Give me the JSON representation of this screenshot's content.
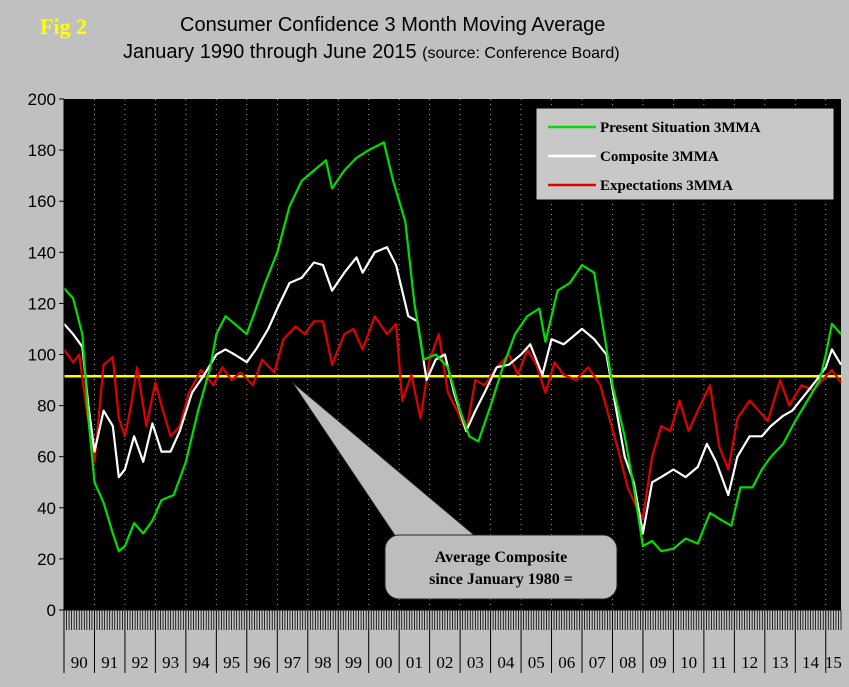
{
  "fig_label": "Fig 2",
  "title": {
    "line1": "Consumer Confidence 3 Month Moving Average",
    "line2": "January 1990 through June 2015",
    "source": "(source: Conference Board)"
  },
  "colors": {
    "background": "#c0c0c0",
    "plot_area": "#000000",
    "present": "#00dd00",
    "composite": "#ffffff",
    "expectations": "#e00000",
    "average_line": "#ffff00",
    "fig_label": "#ffff00"
  },
  "callout": {
    "line1": "Average Composite",
    "line2": "since January 1980 ="
  },
  "chart_data": {
    "type": "line",
    "ylim": [
      0,
      200
    ],
    "y_ticks": [
      "0",
      "20",
      "40",
      "60",
      "80",
      "100",
      "120",
      "140",
      "160",
      "180",
      "200"
    ],
    "x_range": [
      1990.0,
      2015.5
    ],
    "year_labels": [
      "90",
      "91",
      "92",
      "93",
      "94",
      "95",
      "96",
      "97",
      "98",
      "99",
      "00",
      "01",
      "02",
      "03",
      "04",
      "05",
      "06",
      "07",
      "08",
      "09",
      "10",
      "11",
      "12",
      "13",
      "14",
      "15"
    ],
    "grid": "vertical dotted lines at years",
    "legend_position": "top-right",
    "average_composite": 91.5,
    "series": [
      {
        "name": "Present Situation 3MMA",
        "color": "#00dd00",
        "points": [
          [
            1990.0,
            126
          ],
          [
            1990.3,
            122
          ],
          [
            1990.6,
            108
          ],
          [
            1990.8,
            75
          ],
          [
            1991.0,
            50
          ],
          [
            1991.3,
            42
          ],
          [
            1991.6,
            30
          ],
          [
            1991.8,
            23
          ],
          [
            1992.0,
            25
          ],
          [
            1992.3,
            34
          ],
          [
            1992.6,
            30
          ],
          [
            1992.9,
            35
          ],
          [
            1993.2,
            43
          ],
          [
            1993.6,
            45
          ],
          [
            1994.0,
            58
          ],
          [
            1994.4,
            78
          ],
          [
            1994.8,
            95
          ],
          [
            1995.0,
            108
          ],
          [
            1995.3,
            115
          ],
          [
            1995.6,
            112
          ],
          [
            1996.0,
            108
          ],
          [
            1996.3,
            118
          ],
          [
            1996.6,
            128
          ],
          [
            1997.0,
            140
          ],
          [
            1997.4,
            158
          ],
          [
            1997.8,
            168
          ],
          [
            1998.2,
            172
          ],
          [
            1998.6,
            176
          ],
          [
            1998.8,
            165
          ],
          [
            1999.2,
            172
          ],
          [
            1999.6,
            177
          ],
          [
            2000.0,
            180
          ],
          [
            2000.5,
            183
          ],
          [
            2000.8,
            168
          ],
          [
            2001.2,
            152
          ],
          [
            2001.5,
            120
          ],
          [
            2001.8,
            98
          ],
          [
            2002.2,
            100
          ],
          [
            2002.6,
            95
          ],
          [
            2003.0,
            78
          ],
          [
            2003.3,
            68
          ],
          [
            2003.6,
            66
          ],
          [
            2004.0,
            80
          ],
          [
            2004.4,
            95
          ],
          [
            2004.8,
            108
          ],
          [
            2005.2,
            115
          ],
          [
            2005.6,
            118
          ],
          [
            2005.8,
            105
          ],
          [
            2006.2,
            125
          ],
          [
            2006.6,
            128
          ],
          [
            2007.0,
            135
          ],
          [
            2007.4,
            132
          ],
          [
            2007.7,
            110
          ],
          [
            2008.0,
            88
          ],
          [
            2008.4,
            68
          ],
          [
            2008.7,
            48
          ],
          [
            2009.0,
            25
          ],
          [
            2009.3,
            27
          ],
          [
            2009.6,
            23
          ],
          [
            2010.0,
            24
          ],
          [
            2010.4,
            28
          ],
          [
            2010.8,
            26
          ],
          [
            2011.2,
            38
          ],
          [
            2011.6,
            35
          ],
          [
            2011.9,
            33
          ],
          [
            2012.2,
            48
          ],
          [
            2012.6,
            48
          ],
          [
            2012.9,
            55
          ],
          [
            2013.2,
            60
          ],
          [
            2013.6,
            65
          ],
          [
            2014.0,
            74
          ],
          [
            2014.4,
            82
          ],
          [
            2014.8,
            90
          ],
          [
            2015.0,
            100
          ],
          [
            2015.2,
            112
          ],
          [
            2015.5,
            108
          ]
        ]
      },
      {
        "name": "Composite 3MMA",
        "color": "#ffffff",
        "points": [
          [
            1990.0,
            112
          ],
          [
            1990.3,
            108
          ],
          [
            1990.6,
            103
          ],
          [
            1990.8,
            80
          ],
          [
            1991.0,
            62
          ],
          [
            1991.3,
            78
          ],
          [
            1991.6,
            72
          ],
          [
            1991.8,
            52
          ],
          [
            1992.0,
            55
          ],
          [
            1992.3,
            68
          ],
          [
            1992.6,
            58
          ],
          [
            1992.9,
            73
          ],
          [
            1993.2,
            62
          ],
          [
            1993.5,
            62
          ],
          [
            1993.8,
            70
          ],
          [
            1994.2,
            85
          ],
          [
            1994.6,
            92
          ],
          [
            1995.0,
            100
          ],
          [
            1995.3,
            102
          ],
          [
            1995.6,
            100
          ],
          [
            1996.0,
            97
          ],
          [
            1996.3,
            102
          ],
          [
            1996.7,
            110
          ],
          [
            1997.0,
            118
          ],
          [
            1997.4,
            128
          ],
          [
            1997.8,
            130
          ],
          [
            1998.2,
            136
          ],
          [
            1998.5,
            135
          ],
          [
            1998.8,
            125
          ],
          [
            1999.2,
            132
          ],
          [
            1999.6,
            138
          ],
          [
            1999.8,
            132
          ],
          [
            2000.2,
            140
          ],
          [
            2000.6,
            142
          ],
          [
            2000.9,
            135
          ],
          [
            2001.3,
            115
          ],
          [
            2001.6,
            113
          ],
          [
            2001.9,
            90
          ],
          [
            2002.2,
            98
          ],
          [
            2002.5,
            100
          ],
          [
            2002.8,
            85
          ],
          [
            2003.2,
            70
          ],
          [
            2003.5,
            78
          ],
          [
            2003.8,
            85
          ],
          [
            2004.2,
            95
          ],
          [
            2004.6,
            96
          ],
          [
            2005.0,
            100
          ],
          [
            2005.3,
            104
          ],
          [
            2005.7,
            92
          ],
          [
            2006.0,
            106
          ],
          [
            2006.4,
            104
          ],
          [
            2006.7,
            107
          ],
          [
            2007.0,
            110
          ],
          [
            2007.4,
            106
          ],
          [
            2007.8,
            100
          ],
          [
            2008.1,
            80
          ],
          [
            2008.4,
            60
          ],
          [
            2008.7,
            50
          ],
          [
            2009.0,
            30
          ],
          [
            2009.3,
            50
          ],
          [
            2009.6,
            52
          ],
          [
            2010.0,
            55
          ],
          [
            2010.4,
            52
          ],
          [
            2010.8,
            56
          ],
          [
            2011.1,
            65
          ],
          [
            2011.4,
            58
          ],
          [
            2011.8,
            45
          ],
          [
            2012.1,
            60
          ],
          [
            2012.5,
            68
          ],
          [
            2012.9,
            68
          ],
          [
            2013.2,
            72
          ],
          [
            2013.6,
            76
          ],
          [
            2013.9,
            78
          ],
          [
            2014.3,
            84
          ],
          [
            2014.7,
            90
          ],
          [
            2015.0,
            95
          ],
          [
            2015.2,
            102
          ],
          [
            2015.5,
            96
          ]
        ]
      },
      {
        "name": "Expectations 3MMA",
        "color": "#e00000",
        "points": [
          [
            1990.0,
            102
          ],
          [
            1990.3,
            97
          ],
          [
            1990.5,
            100
          ],
          [
            1990.7,
            82
          ],
          [
            1991.0,
            58
          ],
          [
            1991.3,
            96
          ],
          [
            1991.6,
            99
          ],
          [
            1991.8,
            75
          ],
          [
            1992.0,
            68
          ],
          [
            1992.2,
            80
          ],
          [
            1992.4,
            95
          ],
          [
            1992.7,
            72
          ],
          [
            1993.0,
            89
          ],
          [
            1993.2,
            80
          ],
          [
            1993.5,
            68
          ],
          [
            1993.8,
            72
          ],
          [
            1994.1,
            85
          ],
          [
            1994.5,
            94
          ],
          [
            1994.9,
            88
          ],
          [
            1995.2,
            95
          ],
          [
            1995.5,
            90
          ],
          [
            1995.8,
            93
          ],
          [
            1996.2,
            88
          ],
          [
            1996.5,
            98
          ],
          [
            1996.9,
            93
          ],
          [
            1997.2,
            106
          ],
          [
            1997.6,
            111
          ],
          [
            1997.9,
            108
          ],
          [
            1998.2,
            113
          ],
          [
            1998.5,
            113
          ],
          [
            1998.8,
            96
          ],
          [
            1999.2,
            108
          ],
          [
            1999.5,
            110
          ],
          [
            1999.8,
            102
          ],
          [
            2000.2,
            115
          ],
          [
            2000.6,
            108
          ],
          [
            2000.9,
            112
          ],
          [
            2001.1,
            82
          ],
          [
            2001.4,
            92
          ],
          [
            2001.7,
            75
          ],
          [
            2002.0,
            98
          ],
          [
            2002.3,
            108
          ],
          [
            2002.6,
            85
          ],
          [
            2002.9,
            78
          ],
          [
            2003.2,
            70
          ],
          [
            2003.5,
            90
          ],
          [
            2003.8,
            88
          ],
          [
            2004.2,
            95
          ],
          [
            2004.6,
            100
          ],
          [
            2004.9,
            92
          ],
          [
            2005.2,
            102
          ],
          [
            2005.5,
            96
          ],
          [
            2005.8,
            85
          ],
          [
            2006.1,
            97
          ],
          [
            2006.4,
            92
          ],
          [
            2006.8,
            90
          ],
          [
            2007.2,
            95
          ],
          [
            2007.6,
            88
          ],
          [
            2007.9,
            75
          ],
          [
            2008.2,
            62
          ],
          [
            2008.5,
            48
          ],
          [
            2008.8,
            40
          ],
          [
            2009.0,
            36
          ],
          [
            2009.3,
            60
          ],
          [
            2009.6,
            72
          ],
          [
            2009.9,
            70
          ],
          [
            2010.2,
            82
          ],
          [
            2010.5,
            70
          ],
          [
            2010.8,
            78
          ],
          [
            2011.2,
            88
          ],
          [
            2011.5,
            64
          ],
          [
            2011.8,
            55
          ],
          [
            2012.1,
            75
          ],
          [
            2012.5,
            82
          ],
          [
            2012.8,
            78
          ],
          [
            2013.1,
            74
          ],
          [
            2013.5,
            90
          ],
          [
            2013.8,
            80
          ],
          [
            2014.2,
            88
          ],
          [
            2014.6,
            86
          ],
          [
            2014.9,
            90
          ],
          [
            2015.2,
            94
          ],
          [
            2015.5,
            89
          ]
        ]
      }
    ]
  }
}
